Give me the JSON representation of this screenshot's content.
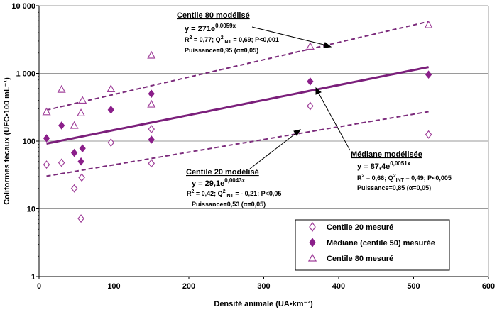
{
  "chart_data": {
    "type": "scatter",
    "xlabel": "Densité animale (UA•km⁻²)",
    "ylabel": "Coliformes fécaux (UFC•100 mL⁻¹)",
    "xlim": [
      0,
      600
    ],
    "ylim": [
      1,
      10000
    ],
    "yscale": "log",
    "x_ticks": [
      "0",
      "100",
      "200",
      "300",
      "400",
      "500",
      "600"
    ],
    "y_ticks": [
      {
        "value": 1,
        "label": "1"
      },
      {
        "value": 10,
        "label": "10"
      },
      {
        "value": 100,
        "label": "100"
      },
      {
        "value": 1000,
        "label": "1 000"
      },
      {
        "value": 10000,
        "label": "10 000"
      }
    ],
    "grid": "horizontal",
    "series": [
      {
        "name": "Centile 20 mesuré",
        "marker": "diamond-open",
        "color": "#a0409a",
        "points": [
          {
            "x": 10,
            "y": 45
          },
          {
            "x": 30,
            "y": 48
          },
          {
            "x": 47,
            "y": 20
          },
          {
            "x": 56,
            "y": 7.2
          },
          {
            "x": 57,
            "y": 29
          },
          {
            "x": 96,
            "y": 95
          },
          {
            "x": 150,
            "y": 150
          },
          {
            "x": 150,
            "y": 47
          },
          {
            "x": 362,
            "y": 330
          },
          {
            "x": 520,
            "y": 125
          }
        ]
      },
      {
        "name": "Médiane (centile 50) mesurée",
        "marker": "diamond-filled",
        "color": "#8b1f8a",
        "points": [
          {
            "x": 10,
            "y": 110
          },
          {
            "x": 30,
            "y": 170
          },
          {
            "x": 47,
            "y": 67
          },
          {
            "x": 56,
            "y": 50
          },
          {
            "x": 58,
            "y": 78
          },
          {
            "x": 96,
            "y": 290
          },
          {
            "x": 150,
            "y": 500
          },
          {
            "x": 150,
            "y": 105
          },
          {
            "x": 362,
            "y": 760
          },
          {
            "x": 520,
            "y": 960
          }
        ]
      },
      {
        "name": "Centile 80 mesuré",
        "marker": "triangle-open",
        "color": "#a0409a",
        "points": [
          {
            "x": 10,
            "y": 270
          },
          {
            "x": 30,
            "y": 580
          },
          {
            "x": 47,
            "y": 170
          },
          {
            "x": 56,
            "y": 260
          },
          {
            "x": 58,
            "y": 400
          },
          {
            "x": 96,
            "y": 590
          },
          {
            "x": 150,
            "y": 1850
          },
          {
            "x": 150,
            "y": 350
          },
          {
            "x": 362,
            "y": 2500
          },
          {
            "x": 520,
            "y": 5200
          }
        ]
      }
    ],
    "fits": [
      {
        "id": "c80",
        "a": 271,
        "b": 0.0059,
        "x_range": [
          10,
          520
        ],
        "style": "dashed",
        "color": "#7b2a7b",
        "width": 2
      },
      {
        "id": "med",
        "a": 87.4,
        "b": 0.0051,
        "x_range": [
          10,
          520
        ],
        "style": "solid",
        "color": "#7b1f7b",
        "width": 3
      },
      {
        "id": "c20",
        "a": 29.1,
        "b": 0.0043,
        "x_range": [
          10,
          520
        ],
        "style": "dashed",
        "color": "#7b2a7b",
        "width": 2
      }
    ],
    "annotations": {
      "c80": {
        "title": "Centile 80 modélisé",
        "eq": "y = 271e",
        "eq_exp": "0,0059x",
        "stat_r2": "R",
        "stat_rest": " = 0,77; Q",
        "stat_sub": "INT",
        "stat_tail": " = 0,69; P<0,001",
        "power": "Puissance=0,95 (α=0,05)"
      },
      "med": {
        "title": "Médiane modélisée",
        "eq": "y = 87,4e",
        "eq_exp": "0,0051x",
        "stat_r2": "R",
        "stat_rest": " = 0,66; Q",
        "stat_sub": "INT",
        "stat_tail": " = 0,49; P<0,005",
        "power": "Puissance=0,85 (α=0,05)"
      },
      "c20": {
        "title": "Centile 20 modélisé",
        "eq": "y = 29,1e",
        "eq_exp": "0,0043x",
        "stat_r2": "R",
        "stat_rest": " = 0,42; Q",
        "stat_sub": "INT",
        "stat_tail": " = - 0,21; P<0,05",
        "power": "Puissance=0,53 (α=0,05)"
      }
    },
    "legend": {
      "placement": "bottom-right",
      "entries": [
        "Centile 20 mesuré",
        "Médiane (centile 50) mesurée",
        "Centile 80 mesuré"
      ]
    }
  }
}
